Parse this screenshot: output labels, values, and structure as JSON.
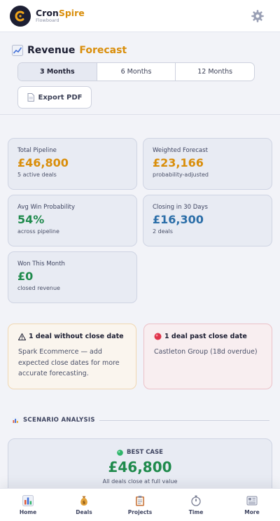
{
  "header": {
    "brand_prefix": "Cron",
    "brand_suffix": "Spire",
    "brand_sub": "Flowboard"
  },
  "page": {
    "title_main": "Revenue",
    "title_accent": "Forecast",
    "ranges": [
      "3 Months",
      "6 Months",
      "12 Months"
    ],
    "active_range": "3 Months",
    "export_label": "Export PDF"
  },
  "metrics": [
    {
      "label": "Total Pipeline",
      "value": "£46,800",
      "sub": "5 active deals",
      "color": "#d98e0b"
    },
    {
      "label": "Weighted Forecast",
      "value": "£23,166",
      "sub": "probability-adjusted",
      "color": "#d98e0b"
    },
    {
      "label": "Avg Win Probability",
      "value": "54%",
      "sub": "across pipeline",
      "color": "#1f8a4c"
    },
    {
      "label": "Closing in 30 Days",
      "value": "£16,300",
      "sub": "2 deals",
      "color": "#2b6ea8"
    },
    {
      "label": "Won This Month",
      "value": "£0",
      "sub": "closed revenue",
      "color": "#1f8a4c"
    }
  ],
  "alerts": {
    "warning": {
      "title": "1 deal without close date",
      "body": "Spark Ecommerce — add expected close dates for more accurate forecasting."
    },
    "overdue": {
      "title": "1 deal past close date",
      "body": "Castleton Group (18d overdue)"
    }
  },
  "scenario": {
    "section_label": "SCENARIO ANALYSIS",
    "best_case_label": "BEST CASE",
    "best_case_value": "£46,800",
    "best_case_sub": "All deals close at full value"
  },
  "nav": {
    "items": [
      "Home",
      "Deals",
      "Projects",
      "Time",
      "More"
    ]
  }
}
